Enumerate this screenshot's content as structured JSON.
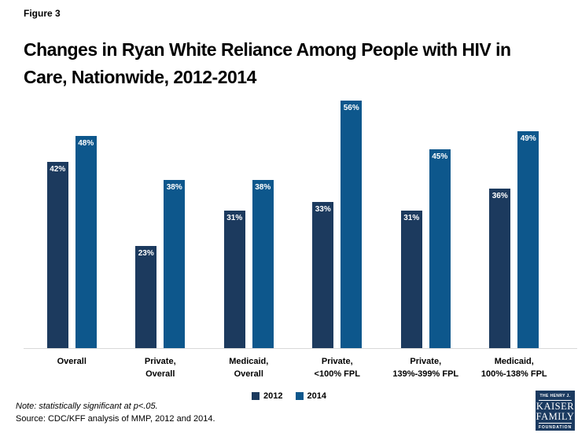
{
  "figure_label": "Figure 3",
  "title": "Changes in Ryan White Reliance Among People with HIV in\nCare, Nationwide, 2012-2014",
  "note": "Note: statistically significant at p<.05.",
  "source": "Source: CDC/KFF analysis of MMP, 2012 and 2014.",
  "colors": {
    "series_2012": "#1c3a5e",
    "series_2014": "#0d578c",
    "axis_line": "#d9d9d9",
    "logo_background": "#1b3a60"
  },
  "chart_data": {
    "type": "bar",
    "categories": [
      "Overall",
      "Private, Overall",
      "Medicaid, Overall",
      "Private, <100% FPL",
      "Private, 139%-399% FPL",
      "Medicaid, 100%-138% FPL"
    ],
    "category_lines": [
      [
        "Overall"
      ],
      [
        "Private,",
        "Overall"
      ],
      [
        "Medicaid,",
        "Overall"
      ],
      [
        "Private,",
        "<100% FPL"
      ],
      [
        "Private,",
        "139%-399% FPL"
      ],
      [
        "Medicaid,",
        "100%-138% FPL"
      ]
    ],
    "series": [
      {
        "name": "2012",
        "color": "#1c3a5e",
        "values": [
          42,
          23,
          31,
          33,
          31,
          36
        ]
      },
      {
        "name": "2014",
        "color": "#0d578c",
        "values": [
          48,
          38,
          38,
          56,
          45,
          49
        ]
      }
    ],
    "value_suffix": "%",
    "title": "Changes in Ryan White Reliance Among People with HIV in Care, Nationwide, 2012-2014",
    "xlabel": "",
    "ylabel": "",
    "ylim": [
      0,
      60
    ],
    "grid": false,
    "value_labels": "inside-top",
    "legend_position": "bottom"
  },
  "legend": [
    {
      "label": "2012",
      "color": "#1c3a5e"
    },
    {
      "label": "2014",
      "color": "#0d578c"
    }
  ],
  "logo": {
    "line1": "THE HENRY J.",
    "line2": "KAISER",
    "line3": "FAMILY",
    "line4": "FOUNDATION"
  }
}
